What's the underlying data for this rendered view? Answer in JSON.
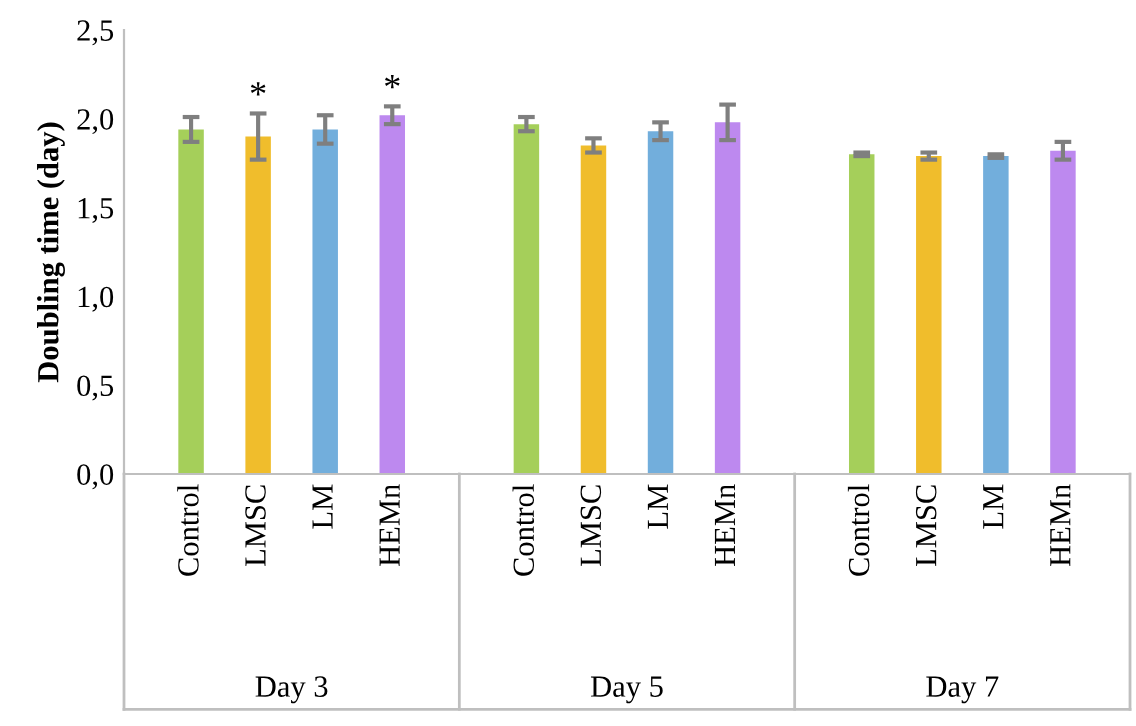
{
  "chart_data": {
    "type": "bar",
    "ylabel": "Doubling time (day)",
    "categories": [
      "Control",
      "LMSC",
      "LM",
      "HEMn",
      null,
      "Control",
      "LMSC",
      "LM",
      "HEMn",
      null,
      "Control",
      "LMSC",
      "LM",
      "HEMn"
    ],
    "values": [
      1.94,
      1.9,
      1.94,
      2.02,
      null,
      1.97,
      1.85,
      1.93,
      1.98,
      null,
      1.8,
      1.79,
      1.79,
      1.82
    ],
    "errors": [
      0.07,
      0.13,
      0.08,
      0.05,
      null,
      0.04,
      0.04,
      0.05,
      0.1,
      null,
      0.01,
      0.02,
      0.01,
      0.05
    ],
    "colors": [
      "#a5cf5a",
      "#f0bd2c",
      "#72aedc",
      "#bd89ef",
      "#ffffff",
      "#a5cf5a",
      "#f0bd2c",
      "#72aedc",
      "#bd89ef",
      "#ffffff",
      "#a5cf5a",
      "#f0bd2c",
      "#72aedc",
      "#bd89ef"
    ],
    "value_labels": [
      null,
      "*",
      null,
      "*",
      null,
      null,
      null,
      null,
      null,
      null,
      null,
      null,
      null,
      null
    ],
    "annotations": [
      "Day 3",
      "Day 5",
      "Day 7"
    ],
    "ylim": [
      0,
      2.5
    ],
    "yticks": [
      {
        "value": 0,
        "label": "0,0"
      },
      {
        "value": 0.5,
        "label": "0,5"
      },
      {
        "value": 1,
        "label": "1,0"
      },
      {
        "value": 1.5,
        "label": "1,5"
      },
      {
        "value": 2,
        "label": "2,0"
      },
      {
        "value": 2.5,
        "label": "2,5"
      }
    ],
    "grid": false,
    "legend": false
  }
}
